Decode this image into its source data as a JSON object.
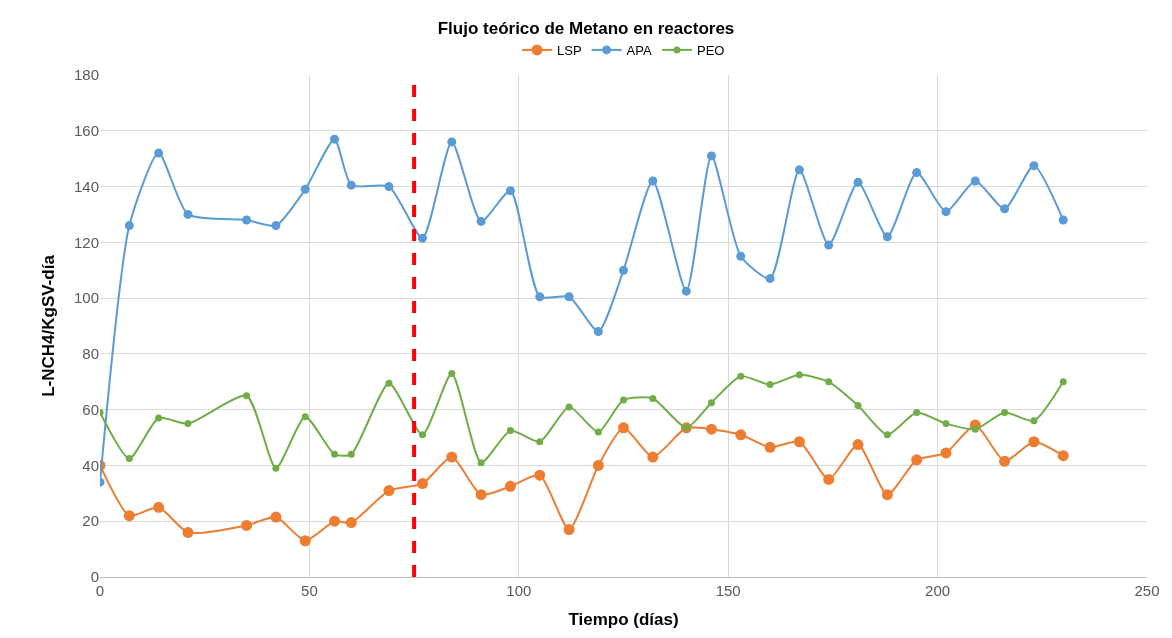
{
  "chart_data": {
    "type": "line",
    "title": "Flujo teórico de Metano en reactores",
    "xlabel": "Tiempo (días)",
    "ylabel": "L-NCH4/KgSV-día",
    "x": [
      0,
      7,
      14,
      21,
      35,
      42,
      49,
      56,
      60,
      69,
      77,
      84,
      91,
      98,
      105,
      112,
      119,
      125,
      132,
      140,
      146,
      153,
      160,
      167,
      174,
      181,
      188,
      195,
      202,
      209,
      216,
      223,
      230
    ],
    "series": [
      {
        "name": "LSP",
        "color": "#ed7d31",
        "values": [
          40,
          22,
          25,
          16,
          18.5,
          21.5,
          13,
          20,
          19.5,
          31,
          33.5,
          43,
          29.5,
          32.5,
          36.5,
          17,
          40,
          53.5,
          43,
          53.5,
          53,
          51,
          46.5,
          48.5,
          35,
          47.5,
          29.5,
          42,
          44.5,
          54.5,
          41.5,
          48.5,
          43.5
        ]
      },
      {
        "name": "APA",
        "color": "#5b9bd5",
        "values": [
          34,
          126,
          152,
          130,
          128,
          126,
          139,
          157,
          140.5,
          140,
          121.5,
          156,
          127.5,
          138.5,
          100.5,
          100.5,
          88,
          110,
          142,
          102.5,
          151,
          115,
          107,
          146,
          119,
          141.5,
          122,
          145,
          131,
          142,
          132,
          147.5,
          128
        ]
      },
      {
        "name": "PEO",
        "color": "#70ad47",
        "values": [
          59,
          42.5,
          57,
          55,
          65,
          39,
          57.5,
          44,
          44,
          69.5,
          51,
          73,
          41,
          52.5,
          48.5,
          61,
          52,
          63.5,
          64,
          53.5,
          62.5,
          72,
          69,
          72.5,
          70,
          61.5,
          51,
          59,
          55,
          53,
          59,
          56,
          70
        ]
      }
    ],
    "xlim": [
      0,
      250
    ],
    "xticks": [
      0,
      50,
      100,
      150,
      200,
      250
    ],
    "ylim": [
      0,
      180
    ],
    "yticks": [
      0,
      20,
      40,
      60,
      80,
      100,
      120,
      140,
      160,
      180
    ],
    "ref_lines": [
      {
        "axis": "x",
        "value": 75,
        "color": "#ff0000",
        "line_style": "dashed"
      }
    ],
    "grid": true,
    "legend": "top",
    "marker": "circle",
    "line_style": "solid"
  }
}
